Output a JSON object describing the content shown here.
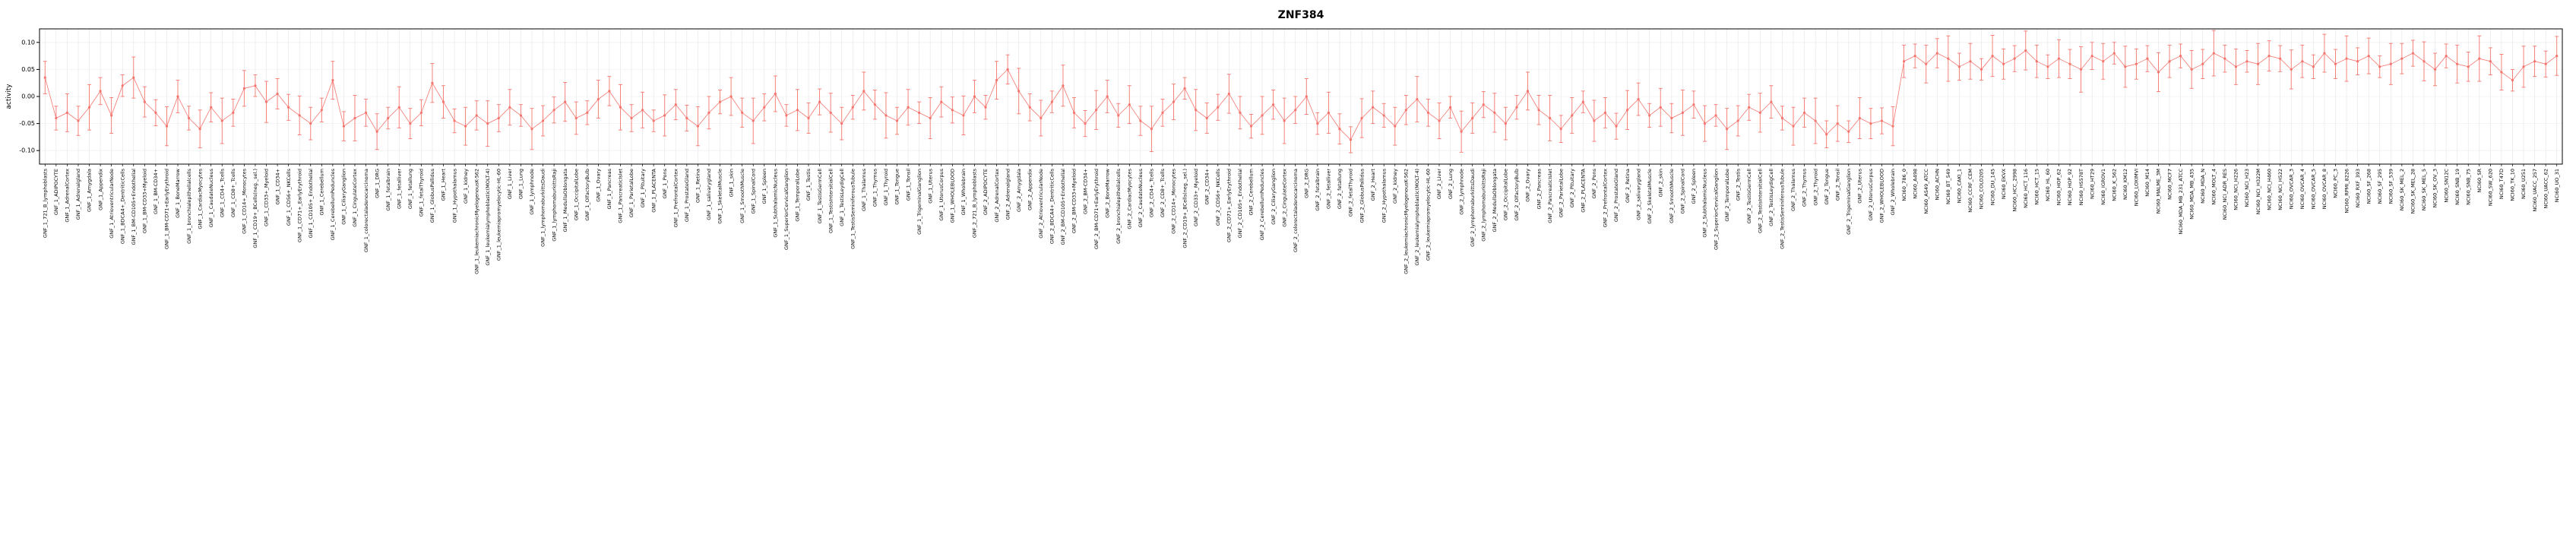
{
  "chart_data": {
    "type": "line",
    "title": "ZNF384",
    "xlabel": "",
    "ylabel": "activity",
    "ylim": [
      -0.125,
      0.125
    ],
    "yticks": [
      -0.1,
      -0.05,
      0.0,
      0.05,
      0.1
    ],
    "ytick_labels": [
      "-0.10",
      "-0.05",
      "0.00",
      "0.05",
      "0.10"
    ],
    "grid": "vertical-per-category",
    "legend": "none",
    "point_color": "#f4766e",
    "grid_color": "#e4e4e4",
    "axis_color": "#000000",
    "category_prefixes": [
      "GNF_1_",
      "GNF_2_"
    ],
    "tissues": [
      "721_B_lymphoblasts",
      "ADIPOCYTE",
      "AdrenalCortex",
      "Adrenalgland",
      "Amygdala",
      "Appendix",
      "AtrioventricularNode",
      "BDCA4+_DentriticCells",
      "BM-CD105+Endothelial",
      "BM-CD33+Myeloid",
      "BM-CD34+",
      "BM-CD71+EarlyErythroid",
      "BoneMarrow",
      "bronchialepithelialcells",
      "CardiacMyocytes",
      "CaudateNucleus",
      "CD4+_Tcells",
      "CD8+_Tcells",
      "CD14+_Monocytes",
      "CD19+_BCells(neg._sel.)",
      "CD33+_Myeloid",
      "CD34+",
      "CD56+_NKCells",
      "CD71+_EarlyErythroid",
      "CD105+_Endothelial",
      "Cerebellum",
      "CerebellumPeduncles",
      "CiliaryGanglion",
      "CingulateCortex",
      "colorectaladenocarcinoma",
      "DRG",
      "fetalbrain",
      "fetalliver",
      "fetallung",
      "fetalThyroid",
      "GlobusPallidus",
      "Heart",
      "Hypothalamus",
      "kidney",
      "leukemiachronicMyelogenousK-562",
      "leukemialymphoblastic(MOLT-4)",
      "leukemiapromyelocytic-HL-60",
      "Liver",
      "Lung",
      "lymphnode",
      "lymphomaburkittsDaudi",
      "lymphomaburkittsRaji",
      "MedullaOblongata",
      "OccipitalLobe",
      "OlfactoryBulb",
      "Ovary",
      "Pancreas",
      "PancreaticIslet",
      "ParietalLobe",
      "Pituitary",
      "PLACENTA",
      "Pons",
      "PrefrontalCortex",
      "ProstateGland",
      "Retina",
      "salivarygland",
      "SkeletalMuscle",
      "skin",
      "SmoothMuscle",
      "SpinalCord",
      "Spleen",
      "SubthalamicNucleus",
      "SuperiorCervicalGanglion",
      "TemporalLobe",
      "Testis",
      "TestisGermCell",
      "TestisIntersitialCell",
      "TestisLeydigCell",
      "TestisSeminiferousTubule",
      "Thalamus",
      "Thymus",
      "Thyroid",
      "Tongue",
      "Tonsil",
      "TrigeminalGanglion",
      "Uterus",
      "UterusCorpus",
      "WHOLEBLOOD",
      "Wholebrain"
    ],
    "cell_line_prefix": "NCI60_",
    "cell_lines": [
      "786_0",
      "A498",
      "A549_ATCC",
      "ACHN",
      "BT_549",
      "CAKI_1",
      "CCRF_CEM",
      "COLO205",
      "DU_145",
      "EKVX",
      "HCC_2998",
      "HCT_116",
      "HCT_15",
      "HL_60",
      "HOP_62",
      "HOP_92",
      "HS578T",
      "HT29",
      "IGROV1",
      "K_562",
      "KM12",
      "LOXIMVI",
      "M14",
      "MALME_3M",
      "MCF7",
      "MDA_MB_231_ATCC",
      "MDA_MB_435",
      "MDA_N",
      "MOLT_4",
      "NCI_ADR_RES",
      "NCI_H226",
      "NCI_H23",
      "NCI_H322M",
      "NCI_H460",
      "NCI_H522",
      "OVCAR_3",
      "OVCAR_4",
      "OVCAR_5",
      "OVCAR_8",
      "PC_3",
      "RPMI_8226",
      "RXF_393",
      "SF_268",
      "SF_295",
      "SF_539",
      "SK_MEL_2",
      "SK_MEL_28",
      "SK_MEL_5",
      "SK_OV_3",
      "SN12C",
      "SNB_19",
      "SNB_75",
      "SR",
      "SW_620",
      "T47D",
      "TK_10",
      "U251",
      "UACC_257",
      "UACC_62",
      "UO_31"
    ],
    "values": [
      0.035,
      -0.04,
      -0.03,
      -0.045,
      -0.02,
      0.01,
      -0.035,
      0.02,
      0.035,
      -0.01,
      -0.03,
      -0.055,
      0.0,
      -0.04,
      -0.06,
      -0.02,
      -0.045,
      -0.03,
      0.015,
      0.02,
      -0.01,
      0.005,
      -0.02,
      -0.035,
      -0.05,
      -0.025,
      0.03,
      -0.055,
      -0.04,
      -0.03,
      -0.065,
      -0.04,
      -0.02,
      -0.05,
      -0.03,
      0.025,
      -0.01,
      -0.045,
      -0.055,
      -0.035,
      -0.05,
      -0.04,
      -0.02,
      -0.035,
      -0.06,
      -0.045,
      -0.025,
      -0.01,
      -0.04,
      -0.03,
      -0.005,
      0.01,
      -0.02,
      -0.04,
      -0.025,
      -0.045,
      -0.035,
      -0.015,
      -0.04,
      -0.055,
      -0.03,
      -0.01,
      0.0,
      -0.03,
      -0.045,
      -0.02,
      0.005,
      -0.035,
      -0.025,
      -0.04,
      -0.01,
      -0.03,
      -0.05,
      -0.02,
      0.01,
      -0.015,
      -0.035,
      -0.045,
      -0.02,
      -0.03,
      -0.04,
      -0.01,
      -0.025,
      -0.035,
      0.0,
      -0.02,
      0.03,
      0.05,
      0.01,
      -0.02,
      -0.04,
      -0.01,
      0.02,
      -0.03,
      -0.05,
      -0.025,
      0.0,
      -0.035,
      -0.015,
      -0.045,
      -0.06,
      -0.03,
      -0.01,
      0.015,
      -0.025,
      -0.04,
      -0.02,
      0.005,
      -0.03,
      -0.055,
      -0.035,
      -0.015,
      -0.045,
      -0.025,
      0.0,
      -0.05,
      -0.03,
      -0.06,
      -0.08,
      -0.04,
      -0.02,
      -0.035,
      -0.055,
      -0.025,
      -0.005,
      -0.03,
      -0.045,
      -0.02,
      -0.065,
      -0.04,
      -0.015,
      -0.03,
      -0.05,
      -0.02,
      0.01,
      -0.025,
      -0.04,
      -0.06,
      -0.035,
      -0.01,
      -0.045,
      -0.03,
      -0.055,
      -0.025,
      -0.005,
      -0.035,
      -0.02,
      -0.04,
      -0.03,
      -0.015,
      -0.05,
      -0.035,
      -0.06,
      -0.045,
      -0.02,
      -0.03,
      -0.01,
      -0.04,
      -0.055,
      -0.03,
      -0.045,
      -0.07,
      -0.05,
      -0.065,
      -0.04,
      -0.05,
      -0.045,
      -0.055,
      0.065,
      0.075,
      0.06,
      0.08,
      0.07,
      0.055,
      0.065,
      0.05,
      0.075,
      0.06,
      0.07,
      0.085,
      0.065,
      0.055,
      0.07,
      0.06,
      0.05,
      0.075,
      0.065,
      0.08,
      0.055,
      0.06,
      0.07,
      0.045,
      0.065,
      0.075,
      0.05,
      0.06,
      0.08,
      0.07,
      0.055,
      0.065,
      0.06,
      0.075,
      0.07,
      0.05,
      0.065,
      0.055,
      0.08,
      0.06,
      0.07,
      0.065,
      0.075,
      0.055,
      0.06,
      0.07,
      0.08,
      0.065,
      0.05,
      0.075,
      0.06,
      0.055,
      0.07,
      0.065,
      0.045,
      0.03,
      0.055,
      0.065,
      0.06,
      0.075
    ],
    "error_halfwidth_pattern": [
      0.03,
      0.022,
      0.035,
      0.027,
      0.042,
      0.025,
      0.033,
      0.02,
      0.038,
      0.028,
      0.024,
      0.036
    ]
  }
}
